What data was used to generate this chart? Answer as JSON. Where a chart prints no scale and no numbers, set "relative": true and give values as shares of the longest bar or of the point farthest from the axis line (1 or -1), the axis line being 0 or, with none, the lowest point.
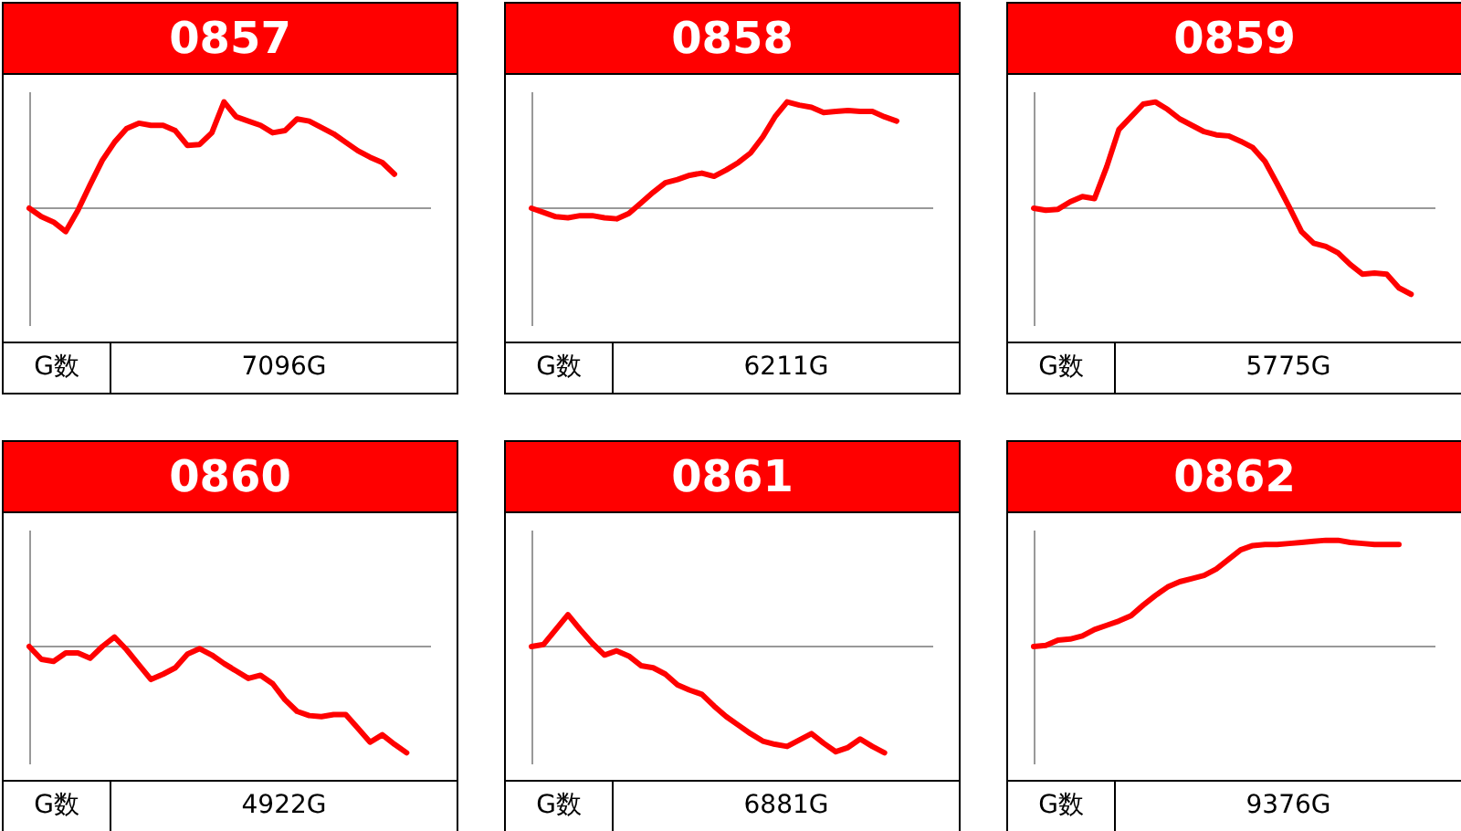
{
  "chart_data": [
    {
      "type": "line",
      "title": "0857",
      "relative": true,
      "annotations": [
        "G数",
        "7096G"
      ],
      "categories": [
        null,
        null,
        null,
        null,
        null,
        null,
        null,
        null,
        null,
        null,
        null,
        null,
        null,
        null,
        null,
        null,
        null,
        null,
        null,
        null,
        null,
        null,
        null,
        null,
        null,
        null,
        null,
        null,
        null,
        null,
        null,
        null,
        null,
        null
      ],
      "series": [
        {
          "color": "#ff0000",
          "values": [
            0,
            -0.08,
            -0.13,
            -0.22,
            -0.02,
            0.22,
            0.45,
            0.62,
            0.75,
            0.8,
            0.78,
            0.78,
            0.73,
            0.59,
            0.6,
            0.71,
            1,
            0.86,
            0.82,
            0.78,
            0.71,
            0.73,
            0.84,
            0.82,
            0.76,
            0.7,
            0.62,
            0.54,
            0.48,
            0.43,
            0.32,
            null,
            null,
            null
          ]
        }
      ]
    },
    {
      "type": "line",
      "title": "0858",
      "relative": true,
      "annotations": [
        "G数",
        "6211G"
      ],
      "categories": [
        null,
        null,
        null,
        null,
        null,
        null,
        null,
        null,
        null,
        null,
        null,
        null,
        null,
        null,
        null,
        null,
        null,
        null,
        null,
        null,
        null,
        null,
        null,
        null,
        null,
        null,
        null,
        null,
        null,
        null,
        null,
        null,
        null,
        null
      ],
      "series": [
        {
          "color": "#ff0000",
          "values": [
            0,
            -0.04,
            -0.08,
            -0.09,
            -0.07,
            -0.07,
            -0.09,
            -0.1,
            -0.05,
            0.05,
            0.15,
            0.24,
            0.27,
            0.31,
            0.33,
            0.3,
            0.36,
            0.43,
            0.52,
            0.67,
            0.86,
            1,
            0.97,
            0.95,
            0.9,
            0.91,
            0.92,
            0.91,
            0.91,
            0.86,
            0.82,
            null,
            null,
            null
          ]
        }
      ]
    },
    {
      "type": "line",
      "title": "0859",
      "relative": true,
      "annotations": [
        "G数",
        "5775G"
      ],
      "categories": [
        null,
        null,
        null,
        null,
        null,
        null,
        null,
        null,
        null,
        null,
        null,
        null,
        null,
        null,
        null,
        null,
        null,
        null,
        null,
        null,
        null,
        null,
        null,
        null,
        null,
        null,
        null,
        null,
        null,
        null,
        null,
        null,
        null,
        null
      ],
      "series": [
        {
          "color": "#ff0000",
          "values": [
            0,
            -0.02,
            -0.01,
            0.06,
            0.11,
            0.09,
            0.39,
            0.74,
            0.86,
            0.98,
            1,
            0.93,
            0.84,
            0.78,
            0.72,
            0.69,
            0.68,
            0.63,
            0.57,
            0.44,
            0.23,
            0.01,
            -0.22,
            -0.33,
            -0.36,
            -0.42,
            -0.53,
            -0.62,
            -0.61,
            -0.62,
            -0.75,
            -0.81,
            null,
            null
          ]
        }
      ]
    },
    {
      "type": "line",
      "title": "0860",
      "relative": true,
      "annotations": [
        "G数",
        "4922G"
      ],
      "categories": [
        null,
        null,
        null,
        null,
        null,
        null,
        null,
        null,
        null,
        null,
        null,
        null,
        null,
        null,
        null,
        null,
        null,
        null,
        null,
        null,
        null,
        null,
        null,
        null,
        null,
        null,
        null,
        null,
        null,
        null,
        null,
        null,
        null,
        null
      ],
      "series": [
        {
          "color": "#ff0000",
          "values": [
            0,
            -0.12,
            -0.14,
            -0.06,
            -0.06,
            -0.11,
            0,
            0.09,
            -0.03,
            -0.17,
            -0.31,
            -0.26,
            -0.2,
            -0.07,
            -0.02,
            -0.08,
            -0.16,
            -0.23,
            -0.3,
            -0.27,
            -0.35,
            -0.5,
            -0.61,
            -0.65,
            -0.66,
            -0.64,
            -0.64,
            -0.77,
            -0.9,
            -0.83,
            -0.92,
            -1,
            null,
            null
          ]
        }
      ]
    },
    {
      "type": "line",
      "title": "0861",
      "relative": true,
      "annotations": [
        "G数",
        "6881G"
      ],
      "categories": [
        null,
        null,
        null,
        null,
        null,
        null,
        null,
        null,
        null,
        null,
        null,
        null,
        null,
        null,
        null,
        null,
        null,
        null,
        null,
        null,
        null,
        null,
        null,
        null,
        null,
        null,
        null,
        null,
        null,
        null,
        null,
        null,
        null,
        null
      ],
      "series": [
        {
          "color": "#ff0000",
          "values": [
            0,
            0.02,
            0.16,
            0.3,
            0.16,
            0.03,
            -0.08,
            -0.04,
            -0.09,
            -0.18,
            -0.2,
            -0.26,
            -0.36,
            -0.41,
            -0.45,
            -0.56,
            -0.66,
            -0.74,
            -0.82,
            -0.89,
            -0.92,
            -0.94,
            -0.88,
            -0.82,
            -0.91,
            -0.99,
            -0.95,
            -0.87,
            -0.94,
            -1,
            null,
            null,
            null,
            null
          ]
        }
      ]
    },
    {
      "type": "line",
      "title": "0862",
      "relative": true,
      "annotations": [
        "G数",
        "9376G"
      ],
      "categories": [
        null,
        null,
        null,
        null,
        null,
        null,
        null,
        null,
        null,
        null,
        null,
        null,
        null,
        null,
        null,
        null,
        null,
        null,
        null,
        null,
        null,
        null,
        null,
        null,
        null,
        null,
        null,
        null,
        null,
        null,
        null,
        null,
        null,
        null
      ],
      "series": [
        {
          "color": "#ff0000",
          "values": [
            0,
            0.01,
            0.06,
            0.07,
            0.1,
            0.16,
            0.2,
            0.24,
            0.29,
            0.39,
            0.48,
            0.56,
            0.61,
            0.64,
            0.67,
            0.73,
            0.82,
            0.91,
            0.95,
            0.96,
            0.96,
            0.97,
            0.98,
            0.99,
            1,
            1,
            0.98,
            0.97,
            0.96,
            0.96,
            0.96,
            null,
            null,
            null
          ]
        }
      ]
    }
  ]
}
